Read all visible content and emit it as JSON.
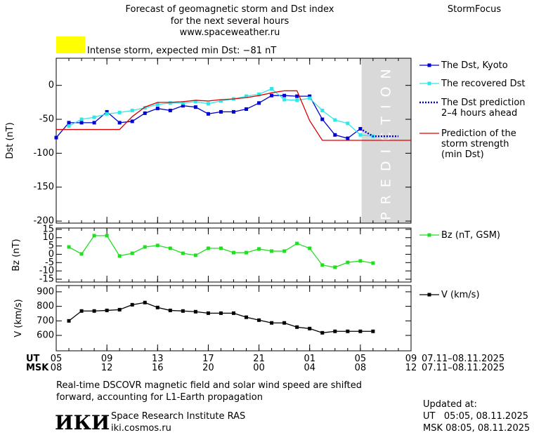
{
  "header": {
    "title_lines": [
      "Forecast of geomagnetic storm and Dst index",
      "for the next several hours",
      "www.spaceweather.ru"
    ],
    "brand": "StormFocus"
  },
  "alert": {
    "text": "Intense storm, expected min Dst: −81 nT",
    "color": "#ffff00"
  },
  "chart_data": [
    {
      "type": "line",
      "y_label": "Dst (nT)",
      "xlim": [
        0,
        28
      ],
      "ylim": [
        -203,
        40
      ],
      "yticks": [
        0,
        -50,
        -100,
        -150,
        -200
      ],
      "shade": {
        "xlim": [
          24.1,
          28
        ],
        "label": "PREDICTION",
        "color": "#d9d9d9"
      },
      "series": [
        {
          "name": [
            "The Dst, Kyoto"
          ],
          "color": "#0000cc",
          "marker": "square",
          "dash": "solid",
          "x": [
            0,
            1,
            2,
            3,
            4,
            5,
            6,
            7,
            8,
            9,
            10,
            11,
            12,
            13,
            14,
            15,
            16,
            17,
            18,
            19,
            20,
            21,
            22,
            23,
            24
          ],
          "values": [
            -77,
            -55,
            -55,
            -55,
            -39,
            -55,
            -53,
            -41,
            -34,
            -37,
            -30,
            -32,
            -42,
            -39,
            -39,
            -35,
            -26,
            -15,
            -15,
            -16,
            -16,
            -50,
            -73,
            -78,
            -64
          ]
        },
        {
          "name": [
            "The recovered Dst"
          ],
          "color": "#33e6e6",
          "marker": "square",
          "dash": "solid",
          "x": [
            1,
            2,
            3,
            4,
            5,
            6,
            7,
            8,
            9,
            10,
            11,
            12,
            13,
            14,
            15,
            16,
            17,
            18,
            19,
            20,
            21,
            22,
            23,
            24,
            25
          ],
          "values": [
            -60,
            -50,
            -47,
            -42,
            -40,
            -37,
            -33,
            -28,
            -26,
            -26,
            -24,
            -27,
            -23,
            -20,
            -16,
            -13,
            -5,
            -21,
            -22,
            -19,
            -37,
            -51,
            -56,
            -73,
            -75
          ]
        },
        {
          "name": [
            "The Dst prediction",
            "2–4 hours ahead"
          ],
          "color": "#0000cc",
          "marker": "none",
          "dash": "dotted",
          "x": [
            24,
            25,
            26,
            27
          ],
          "values": [
            -64,
            -75,
            -75,
            -75
          ]
        },
        {
          "name": [
            "Prediction of the",
            "storm strength",
            "(min Dst)"
          ],
          "color": "#dd0000",
          "marker": "none",
          "dash": "solid",
          "x": [
            0,
            5,
            6,
            7,
            8,
            9,
            10,
            11,
            12,
            13,
            14,
            15,
            16,
            17,
            18,
            19,
            20,
            21,
            28
          ],
          "values": [
            -65,
            -65,
            -46,
            -32,
            -25,
            -25,
            -24,
            -22,
            -23,
            -21,
            -20,
            -18,
            -15,
            -11,
            -8,
            -8,
            -52,
            -81,
            -81
          ]
        }
      ]
    },
    {
      "type": "line",
      "y_label": "Bz (nT)",
      "xlim": [
        0,
        28
      ],
      "ylim": [
        -16.7,
        15.8
      ],
      "yticks": [
        15,
        10,
        5,
        0,
        -5,
        -10,
        -15
      ],
      "series": [
        {
          "name": [
            "Bz (nT, GSM)"
          ],
          "color": "#22dd22",
          "marker": "square",
          "dash": "solid",
          "x": [
            1,
            2,
            3,
            4,
            5,
            6,
            7,
            8,
            9,
            10,
            11,
            12,
            13,
            14,
            15,
            16,
            17,
            18,
            19,
            20,
            21,
            22,
            23,
            24,
            25
          ],
          "values": [
            4.4,
            0.2,
            11.2,
            11.2,
            -1,
            0.6,
            4.4,
            5.3,
            3.6,
            0.6,
            -0.6,
            3.6,
            3.6,
            1,
            1,
            3.2,
            1.9,
            1.9,
            6.5,
            3.6,
            -6.5,
            -7.8,
            -4.9,
            -4,
            -5.3
          ]
        }
      ]
    },
    {
      "type": "line",
      "y_label": "V (km/s)",
      "xlim": [
        0,
        28
      ],
      "ylim": [
        494,
        943
      ],
      "yticks": [
        900,
        800,
        700,
        600
      ],
      "xticks": [
        {
          "value": 0,
          "label": "05"
        },
        {
          "value": 4,
          "label": "09"
        },
        {
          "value": 8,
          "label": "13"
        },
        {
          "value": 12,
          "label": "17"
        },
        {
          "value": 16,
          "label": "21"
        },
        {
          "value": 20,
          "label": "01"
        },
        {
          "value": 24,
          "label": "05"
        },
        {
          "value": 28,
          "label": "09"
        }
      ],
      "msk_labels": [
        "08",
        "12",
        "16",
        "20",
        "00",
        "04",
        "08",
        "12"
      ],
      "series": [
        {
          "name": [
            "V (km/s)"
          ],
          "color": "#000000",
          "marker": "square",
          "dash": "solid",
          "x": [
            1,
            2,
            3,
            4,
            5,
            6,
            7,
            8,
            9,
            10,
            11,
            12,
            13,
            14,
            15,
            16,
            17,
            18,
            19,
            20,
            21,
            22,
            23,
            24,
            25
          ],
          "values": [
            700,
            768,
            768,
            772,
            777,
            811,
            826,
            792,
            772,
            768,
            763,
            753,
            753,
            753,
            725,
            705,
            686,
            686,
            657,
            647,
            618,
            628,
            628,
            628,
            628
          ]
        }
      ]
    }
  ],
  "footer": {
    "axis_rows": [
      "UT",
      "MSK"
    ],
    "date_ranges": [
      "07.11–08.11.2025",
      "07.11–08.11.2025"
    ],
    "note_lines": [
      "Real-time DSCOVR magnetic field and solar wind speed are shifted",
      "forward, accounting for L1-Earth propagation"
    ],
    "logo": "ИКИ",
    "institute": "Space Research Institute RAS",
    "site": "iki.cosmos.ru",
    "updated_lines": [
      "Updated at:",
      "UT   05:05, 08.11.2025",
      "MSK 08:05, 08.11.2025"
    ]
  }
}
